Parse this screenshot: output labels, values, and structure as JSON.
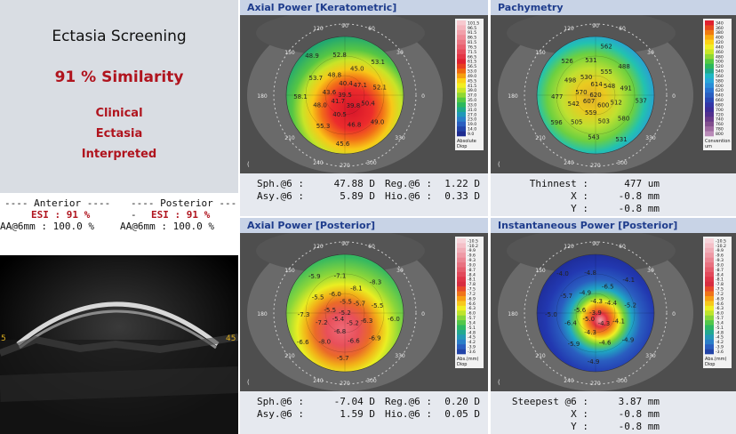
{
  "summary": {
    "title": "Ectasia Screening",
    "similarity": "91 % Similarity",
    "line1": "Clinical",
    "line2": "Ectasia",
    "line3": "Interpreted"
  },
  "anterior": {
    "header": "---- Anterior ----",
    "esi": "ESI : 91 %",
    "aa": "AA@6mm : 100.0 %"
  },
  "posterior": {
    "header": "---- Posterior ----",
    "esi": "ESI : 91 %",
    "aa": "AA@6mm : 100.0 %"
  },
  "oct": {
    "left_label": "5",
    "right_label": "45"
  },
  "panels": {
    "axial_front": {
      "title": "Axial Power [Keratometric]",
      "legend_values": [
        "101.5",
        "96.5",
        "91.5",
        "86.5",
        "81.5",
        "76.5",
        "71.5",
        "66.5",
        "61.5",
        "56.5",
        "53.0",
        "49.0",
        "45.5",
        "41.5",
        "39.0",
        "37.0",
        "35.0",
        "33.0",
        "31.0",
        "27.0",
        "23.0",
        "19.0",
        "14.0",
        "9.0"
      ],
      "legend_unit_1": "Absolute",
      "legend_unit_2": "Diop",
      "stats": [
        [
          "Sph.@6 :",
          "47.88 D",
          "Reg.@6 :",
          "1.22 D"
        ],
        [
          "Asy.@6 :",
          "5.89 D",
          "Hio.@6 :",
          "0.33 D"
        ]
      ],
      "map_values": [
        "39.5",
        "41.7",
        "40.4",
        "39.8",
        "43.6",
        "47.1",
        "40.5",
        "48.8",
        "50.4",
        "48.0",
        "45.0",
        "46.8",
        "53.7",
        "52.1",
        "55.3",
        "52.8",
        "49.0",
        "58.1",
        "53.1",
        "45.6",
        "48.9"
      ]
    },
    "pachymetry": {
      "title": "Pachymetry",
      "legend_values": [
        "340",
        "360",
        "380",
        "400",
        "420",
        "440",
        "460",
        "480",
        "500",
        "520",
        "540",
        "560",
        "580",
        "600",
        "620",
        "640",
        "660",
        "680",
        "700",
        "720",
        "740",
        "760",
        "780",
        "800"
      ],
      "legend_unit_1": "Convention",
      "legend_unit_2": "um",
      "stats": [
        [
          "Thinnest :",
          "477 um"
        ],
        [
          "X :",
          "-0.8 mm"
        ],
        [
          "Y :",
          "-0.8 mm"
        ]
      ],
      "map_values": [
        "620",
        "607",
        "614",
        "600",
        "570",
        "548",
        "559",
        "530",
        "512",
        "542",
        "555",
        "503",
        "498",
        "491",
        "505",
        "531",
        "580",
        "477",
        "488",
        "543",
        "526",
        "537",
        "596",
        "562",
        "531"
      ]
    },
    "axial_back": {
      "title": "Axial Power [Posterior]",
      "legend_values": [
        "-10.5",
        "-10.2",
        "-9.9",
        "-9.6",
        "-9.3",
        "-9.0",
        "-8.7",
        "-8.4",
        "-8.1",
        "-7.8",
        "-7.5",
        "-7.2",
        "-6.9",
        "-6.6",
        "-6.3",
        "-6.0",
        "-5.7",
        "-5.4",
        "-5.1",
        "-4.8",
        "-4.5",
        "-4.2",
        "-3.9",
        "-3.6"
      ],
      "legend_unit_1": "Abs.(mm)",
      "legend_unit_2": "Diop",
      "stats": [
        [
          "Sph.@6 :",
          "-7.04 D",
          "Reg.@6 :",
          "0.20 D"
        ],
        [
          "Asy.@6 :",
          "1.59 D",
          "Hio.@6 :",
          "0.05 D"
        ]
      ],
      "map_values": [
        "-5.2",
        "-5.4",
        "-5.5",
        "-5.2",
        "-5.5",
        "-5.7",
        "-6.8",
        "-6.0",
        "-6.3",
        "-7.2",
        "-8.1",
        "-6.6",
        "-5.5",
        "-5.5",
        "-8.0",
        "-7.1",
        "-6.9",
        "-7.3",
        "-8.3",
        "-5.7",
        "-5.9",
        "-6.0",
        "-6.6"
      ]
    },
    "instant_back": {
      "title": "Instantaneous Power [Posterior]",
      "legend_values": [
        "-10.5",
        "-10.2",
        "-9.9",
        "-9.6",
        "-9.3",
        "-9.0",
        "-8.7",
        "-8.4",
        "-8.1",
        "-7.8",
        "-7.5",
        "-7.2",
        "-6.9",
        "-6.6",
        "-6.3",
        "-6.0",
        "-5.7",
        "-5.4",
        "-5.1",
        "-4.8",
        "-4.5",
        "-4.2",
        "-3.9",
        "-3.6"
      ],
      "legend_unit_1": "Abs.(mm)",
      "legend_unit_2": "Diop",
      "stats": [
        [
          "Steepest @6 :",
          "3.87 mm"
        ],
        [
          "X :",
          "-0.8 mm"
        ],
        [
          "Y :",
          "-0.8 mm"
        ]
      ],
      "map_values": [
        "-3.9",
        "-5.0",
        "-4.3",
        "-4.3",
        "-5.6",
        "-4.4",
        "-4.3",
        "-4.9",
        "-4.1",
        "-6.4",
        "-6.5",
        "-4.6",
        "-5.7",
        "-5.2",
        "-5.9",
        "-4.8",
        "-4.9",
        "-5.0",
        "-4.1",
        "-4.9",
        "-4.0"
      ]
    }
  },
  "axis_labels": [
    "120",
    "90",
    "60",
    "150",
    "30",
    "180",
    "0",
    "210",
    "330",
    "240",
    "270",
    "300"
  ]
}
